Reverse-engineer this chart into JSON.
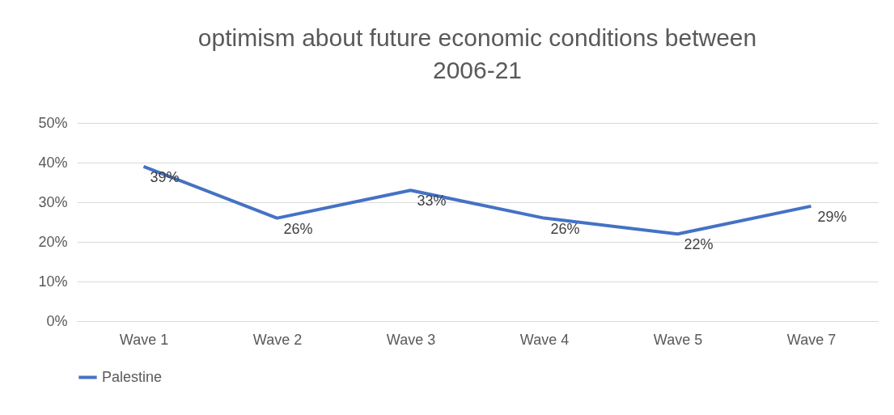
{
  "chart_data": {
    "type": "line",
    "title": "optimism about future economic conditions between 2006-21",
    "categories": [
      "Wave 1",
      "Wave 2",
      "Wave 3",
      "Wave 4",
      "Wave 5",
      "Wave 7"
    ],
    "series": [
      {
        "name": "Palestine",
        "color": "#4472c4",
        "values": [
          39,
          26,
          33,
          26,
          22,
          29
        ],
        "value_labels": [
          "39%",
          "26%",
          "33%",
          "26%",
          "22%",
          "29%"
        ]
      }
    ],
    "ylim": [
      0,
      50
    ],
    "yticks": [
      {
        "value": 0,
        "label": "0%"
      },
      {
        "value": 10,
        "label": "10%"
      },
      {
        "value": 20,
        "label": "20%"
      },
      {
        "value": 30,
        "label": "30%"
      },
      {
        "value": 40,
        "label": "40%"
      },
      {
        "value": 50,
        "label": "50%"
      }
    ],
    "grid": "y",
    "legend": "bottom",
    "marker": "none",
    "line_style": "solid"
  }
}
